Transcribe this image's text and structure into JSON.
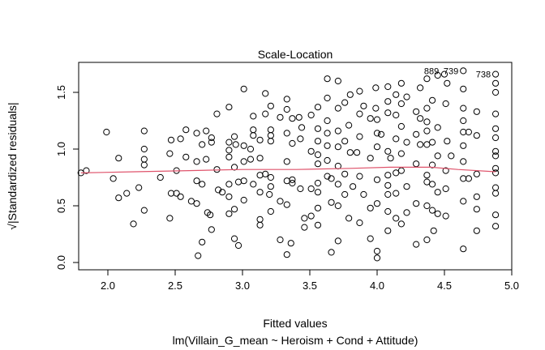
{
  "chart_data": {
    "type": "scatter",
    "title": "Scale-Location",
    "xlabel": "Fitted values",
    "subtitle": "lm(Villain_G_mean ~ Heroism + Cond + Attitude)",
    "ylabel": "√|Standardized residuals|",
    "xlim": [
      1.78,
      4.99
    ],
    "ylim": [
      -0.03,
      1.72
    ],
    "xticks": [
      "2.0",
      "2.5",
      "3.0",
      "3.5",
      "4.0",
      "4.5",
      "5.0"
    ],
    "yticks": [
      "0.0",
      "0.5",
      "1.0",
      "1.5"
    ],
    "grid": false,
    "colors": {
      "points": "#000000",
      "smoother": "#DF536B"
    },
    "labeled_points": [
      {
        "label": "739",
        "x": 4.64,
        "y": 1.69
      },
      {
        "label": "889",
        "x": 4.64,
        "y": 1.69
      },
      {
        "label": "738",
        "x": 4.88,
        "y": 1.66
      }
    ],
    "smoother": [
      [
        1.8,
        0.79
      ],
      [
        2.2,
        0.8
      ],
      [
        2.6,
        0.81
      ],
      [
        3.0,
        0.82
      ],
      [
        3.4,
        0.82
      ],
      [
        3.8,
        0.83
      ],
      [
        4.1,
        0.84
      ],
      [
        4.4,
        0.84
      ],
      [
        4.6,
        0.82
      ],
      [
        4.88,
        0.8
      ]
    ],
    "points": [
      [
        1.8,
        0.79
      ],
      [
        1.84,
        0.81
      ],
      [
        1.99,
        1.15
      ],
      [
        2.04,
        0.74
      ],
      [
        2.08,
        0.92
      ],
      [
        2.08,
        0.57
      ],
      [
        2.14,
        0.61
      ],
      [
        2.19,
        0.34
      ],
      [
        2.23,
        0.66
      ],
      [
        2.27,
        1.16
      ],
      [
        2.27,
        1.0
      ],
      [
        2.27,
        0.91
      ],
      [
        2.27,
        0.86
      ],
      [
        2.27,
        0.46
      ],
      [
        2.39,
        0.75
      ],
      [
        2.46,
        0.96
      ],
      [
        2.47,
        1.08
      ],
      [
        2.47,
        0.61
      ],
      [
        2.46,
        0.39
      ],
      [
        2.51,
        0.81
      ],
      [
        2.51,
        0.61
      ],
      [
        2.54,
        1.09
      ],
      [
        2.54,
        0.58
      ],
      [
        2.58,
        1.17
      ],
      [
        2.58,
        0.93
      ],
      [
        2.62,
        0.54
      ],
      [
        2.66,
        1.14
      ],
      [
        2.66,
        0.52
      ],
      [
        2.66,
        0.89
      ],
      [
        2.67,
        0.06
      ],
      [
        2.66,
        0.72
      ],
      [
        2.7,
        0.69
      ],
      [
        2.7,
        0.18
      ],
      [
        2.7,
        1.04
      ],
      [
        2.73,
        1.16
      ],
      [
        2.73,
        0.91
      ],
      [
        2.74,
        0.44
      ],
      [
        2.76,
        0.42
      ],
      [
        2.77,
        0.29
      ],
      [
        2.77,
        1.1
      ],
      [
        2.77,
        1.06
      ],
      [
        2.81,
        1.31
      ],
      [
        2.81,
        0.82
      ],
      [
        2.82,
        0.64
      ],
      [
        2.85,
        0.62
      ],
      [
        2.9,
        0.43
      ],
      [
        2.9,
        0.69
      ],
      [
        2.9,
        0.99
      ],
      [
        2.9,
        1.06
      ],
      [
        2.9,
        0.93
      ],
      [
        2.9,
        1.37
      ],
      [
        2.9,
        0.58
      ],
      [
        2.94,
        1.11
      ],
      [
        2.94,
        0.84
      ],
      [
        2.94,
        0.47
      ],
      [
        2.94,
        0.21
      ],
      [
        2.95,
        1.04
      ],
      [
        2.97,
        0.15
      ],
      [
        2.97,
        0.71
      ],
      [
        3.01,
        1.53
      ],
      [
        3.01,
        1.03
      ],
      [
        3.01,
        0.89
      ],
      [
        3.01,
        0.55
      ],
      [
        3.01,
        0.72
      ],
      [
        3.06,
        0.91
      ],
      [
        3.06,
        1.0
      ],
      [
        3.08,
        1.29
      ],
      [
        3.08,
        1.17
      ],
      [
        3.08,
        1.12
      ],
      [
        3.08,
        0.69
      ],
      [
        3.13,
        0.38
      ],
      [
        3.13,
        0.33
      ],
      [
        3.13,
        0.77
      ],
      [
        3.13,
        0.92
      ],
      [
        3.13,
        0.62
      ],
      [
        3.13,
        1.08
      ],
      [
        3.17,
        1.49
      ],
      [
        3.17,
        1.31
      ],
      [
        3.17,
        0.78
      ],
      [
        3.2,
        0.6
      ],
      [
        3.21,
        0.67
      ],
      [
        3.21,
        0.45
      ],
      [
        3.21,
        1.38
      ],
      [
        3.21,
        1.17
      ],
      [
        3.21,
        1.12
      ],
      [
        3.21,
        1.07
      ],
      [
        3.21,
        0.75
      ],
      [
        3.28,
        0.54
      ],
      [
        3.28,
        0.2
      ],
      [
        3.28,
        1.28
      ],
      [
        3.33,
        1.44
      ],
      [
        3.33,
        1.35
      ],
      [
        3.33,
        1.14
      ],
      [
        3.33,
        0.89
      ],
      [
        3.33,
        0.51
      ],
      [
        3.33,
        0.07
      ],
      [
        3.33,
        0.72
      ],
      [
        3.36,
        0.17
      ],
      [
        3.37,
        1.27
      ],
      [
        3.37,
        1.05
      ],
      [
        3.37,
        0.7
      ],
      [
        3.37,
        0.73
      ],
      [
        3.42,
        1.28
      ],
      [
        3.43,
        1.09
      ],
      [
        3.44,
        1.19
      ],
      [
        3.43,
        0.65
      ],
      [
        3.46,
        0.31
      ],
      [
        3.46,
        0.39
      ],
      [
        3.51,
        1.3
      ],
      [
        3.51,
        0.98
      ],
      [
        3.51,
        0.65
      ],
      [
        3.51,
        0.41
      ],
      [
        3.56,
        1.37
      ],
      [
        3.56,
        1.18
      ],
      [
        3.56,
        1.07
      ],
      [
        3.56,
        0.95
      ],
      [
        3.56,
        0.87
      ],
      [
        3.56,
        0.7
      ],
      [
        3.56,
        0.62
      ],
      [
        3.56,
        0.48
      ],
      [
        3.56,
        0.33
      ],
      [
        3.63,
        1.62
      ],
      [
        3.63,
        1.45
      ],
      [
        3.63,
        1.25
      ],
      [
        3.63,
        1.14
      ],
      [
        3.63,
        1.03
      ],
      [
        3.63,
        0.9
      ],
      [
        3.63,
        0.76
      ],
      [
        3.66,
        0.74
      ],
      [
        3.66,
        0.53
      ],
      [
        3.66,
        0.09
      ],
      [
        3.71,
        1.6
      ],
      [
        3.71,
        1.36
      ],
      [
        3.71,
        1.16
      ],
      [
        3.71,
        1.02
      ],
      [
        3.71,
        0.85
      ],
      [
        3.71,
        0.69
      ],
      [
        3.71,
        0.5
      ],
      [
        3.71,
        0.19
      ],
      [
        3.76,
        1.41
      ],
      [
        3.76,
        1.07
      ],
      [
        3.76,
        0.78
      ],
      [
        3.76,
        0.6
      ],
      [
        3.79,
        0.39
      ],
      [
        3.8,
        1.48
      ],
      [
        3.79,
        1.21
      ],
      [
        3.8,
        0.97
      ],
      [
        3.82,
        0.67
      ],
      [
        3.85,
        0.97
      ],
      [
        3.87,
        1.51
      ],
      [
        3.87,
        1.31
      ],
      [
        3.87,
        1.11
      ],
      [
        3.87,
        0.76
      ],
      [
        3.87,
        0.35
      ],
      [
        3.9,
        1.38
      ],
      [
        3.9,
        0.6
      ],
      [
        3.95,
        0.21
      ],
      [
        3.95,
        1.27
      ],
      [
        3.95,
        0.92
      ],
      [
        3.95,
        0.48
      ],
      [
        3.99,
        1.54
      ],
      [
        3.99,
        1.36
      ],
      [
        4.0,
        1.26
      ],
      [
        4.0,
        1.14
      ],
      [
        4.0,
        1.02
      ],
      [
        4.0,
        0.73
      ],
      [
        4.0,
        0.52
      ],
      [
        4.0,
        0.1
      ],
      [
        4.0,
        0.04
      ],
      [
        4.03,
        1.13
      ],
      [
        4.08,
        1.55
      ],
      [
        4.08,
        1.42
      ],
      [
        4.08,
        1.32
      ],
      [
        4.08,
        0.98
      ],
      [
        4.08,
        0.77
      ],
      [
        4.08,
        0.68
      ],
      [
        4.08,
        0.6
      ],
      [
        4.08,
        0.45
      ],
      [
        4.08,
        0.28
      ],
      [
        4.1,
        0.92
      ],
      [
        4.14,
        1.48
      ],
      [
        4.14,
        1.3
      ],
      [
        4.14,
        1.09
      ],
      [
        4.14,
        0.79
      ],
      [
        4.14,
        0.61
      ],
      [
        4.14,
        0.39
      ],
      [
        4.18,
        1.58
      ],
      [
        4.18,
        1.4
      ],
      [
        4.18,
        1.2
      ],
      [
        4.18,
        0.96
      ],
      [
        4.18,
        0.81
      ],
      [
        4.18,
        0.34
      ],
      [
        4.22,
        1.06
      ],
      [
        4.22,
        0.67
      ],
      [
        4.22,
        1.46
      ],
      [
        4.22,
        0.44
      ],
      [
        4.29,
        0.16
      ],
      [
        4.29,
        1.33
      ],
      [
        4.29,
        1.13
      ],
      [
        4.29,
        0.87
      ],
      [
        4.29,
        0.52
      ],
      [
        4.32,
        1.54
      ],
      [
        4.32,
        1.27
      ],
      [
        4.32,
        1.04
      ],
      [
        4.37,
        1.62
      ],
      [
        4.37,
        1.36
      ],
      [
        4.37,
        1.24
      ],
      [
        4.37,
        1.16
      ],
      [
        4.37,
        1.04
      ],
      [
        4.37,
        0.77
      ],
      [
        4.37,
        0.71
      ],
      [
        4.37,
        0.5
      ],
      [
        4.37,
        0.2
      ],
      [
        4.41,
        1.43
      ],
      [
        4.41,
        1.06
      ],
      [
        4.41,
        0.86
      ],
      [
        4.41,
        0.69
      ],
      [
        4.41,
        0.46
      ],
      [
        4.42,
        0.28
      ],
      [
        4.45,
        1.65
      ],
      [
        4.45,
        1.19
      ],
      [
        4.45,
        0.94
      ],
      [
        4.45,
        0.62
      ],
      [
        4.45,
        0.43
      ],
      [
        4.5,
        1.66
      ],
      [
        4.52,
        1.58
      ],
      [
        4.51,
        1.4
      ],
      [
        4.51,
        0.81
      ],
      [
        4.52,
        1.07
      ],
      [
        4.51,
        0.65
      ],
      [
        4.51,
        0.41
      ],
      [
        4.55,
        0.94
      ],
      [
        4.64,
        1.69
      ],
      [
        4.64,
        1.53
      ],
      [
        4.64,
        1.36
      ],
      [
        4.64,
        1.25
      ],
      [
        4.64,
        1.15
      ],
      [
        4.64,
        1.03
      ],
      [
        4.64,
        0.89
      ],
      [
        4.64,
        0.74
      ],
      [
        4.64,
        0.54
      ],
      [
        4.64,
        0.12
      ],
      [
        4.68,
        0.74
      ],
      [
        4.68,
        1.15
      ],
      [
        4.74,
        1.33
      ],
      [
        4.74,
        1.12
      ],
      [
        4.74,
        0.78
      ],
      [
        4.74,
        0.58
      ],
      [
        4.74,
        0.47
      ],
      [
        4.74,
        0.28
      ],
      [
        4.88,
        1.66
      ],
      [
        4.88,
        1.58
      ],
      [
        4.88,
        1.5
      ],
      [
        4.88,
        1.31
      ],
      [
        4.88,
        1.18
      ],
      [
        4.88,
        1.1
      ],
      [
        4.88,
        0.98
      ],
      [
        4.88,
        0.94
      ],
      [
        4.88,
        0.83
      ],
      [
        4.88,
        0.79
      ],
      [
        4.88,
        0.66
      ],
      [
        4.88,
        0.61
      ],
      [
        4.88,
        0.42
      ],
      [
        4.88,
        0.32
      ]
    ]
  }
}
